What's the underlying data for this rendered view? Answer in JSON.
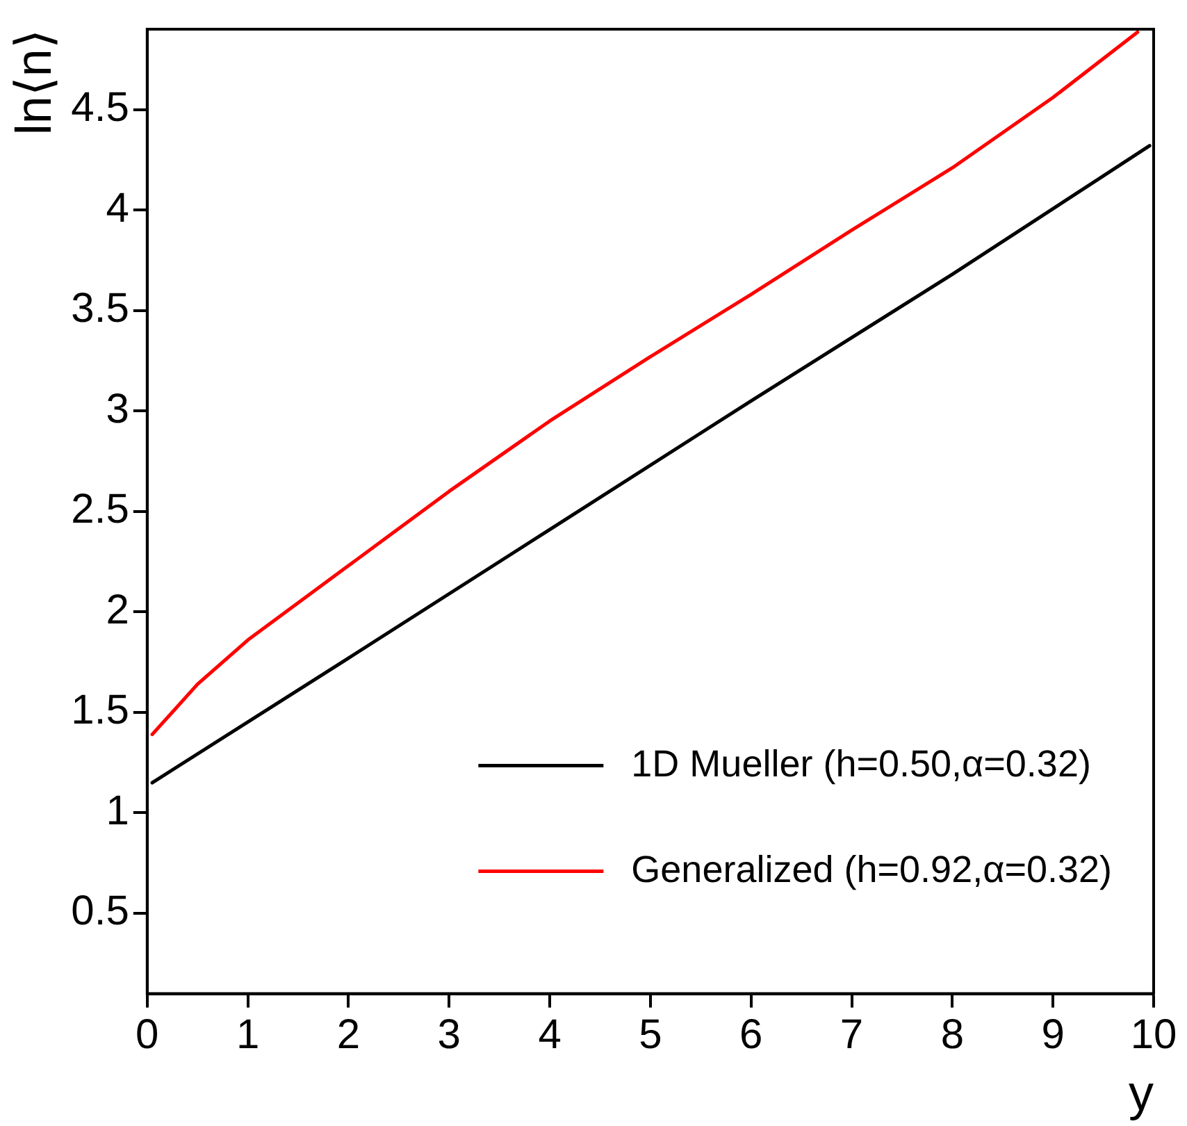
{
  "chart_data": {
    "type": "line",
    "xlabel": "y",
    "ylabel": "ln⟨n⟩",
    "xlim": [
      0,
      10
    ],
    "ylim": [
      0.1,
      4.9
    ],
    "xticks": [
      0,
      1,
      2,
      3,
      4,
      5,
      6,
      7,
      8,
      9,
      10
    ],
    "yticks": [
      0.5,
      1,
      1.5,
      2,
      2.5,
      3,
      3.5,
      4,
      4.5
    ],
    "grid": false,
    "legend": "bottom right",
    "marker": "none",
    "line_style": "solid",
    "series": [
      {
        "name": "1D Mueller (h=0.50,α=0.32)",
        "color": "#000000",
        "x": [
          0.05,
          2,
          4,
          6,
          8,
          9.96
        ],
        "values": [
          1.15,
          1.77,
          2.41,
          3.05,
          3.68,
          4.32
        ]
      },
      {
        "name": "Generalized (h=0.92,α=0.32)",
        "color": "#ff0000",
        "x": [
          0.05,
          0.5,
          1,
          2,
          3,
          4,
          5,
          6,
          7,
          8,
          9,
          9.84
        ],
        "values": [
          1.39,
          1.64,
          1.86,
          2.23,
          2.6,
          2.95,
          3.27,
          3.58,
          3.9,
          4.21,
          4.56,
          4.885
        ]
      }
    ]
  }
}
